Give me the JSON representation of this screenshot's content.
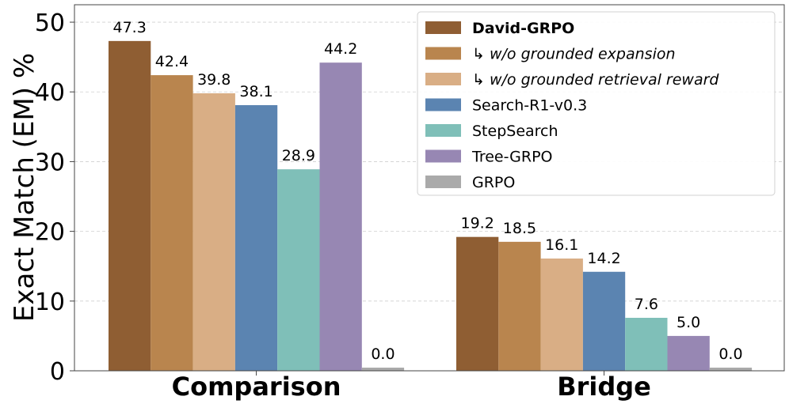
{
  "chart_data": {
    "type": "bar",
    "ylabel": "Exact Match (EM) %",
    "ylim": [
      0,
      52.5
    ],
    "yticks": [
      0,
      10,
      20,
      30,
      40,
      50
    ],
    "grid": true,
    "legend_position": "top-right",
    "categories": [
      "Comparison",
      "Bridge"
    ],
    "series": [
      {
        "name": "David-GRPO",
        "color": "#8f5e33",
        "values": [
          47.3,
          19.2
        ],
        "labels": [
          "47.3",
          "19.2"
        ],
        "bold": true,
        "italic": false
      },
      {
        "name": "↳ w/o grounded expansion",
        "color": "#b9854e",
        "values": [
          42.4,
          18.5
        ],
        "labels": [
          "42.4",
          "18.5"
        ],
        "bold": false,
        "italic": true
      },
      {
        "name": "↳ w/o grounded retrieval reward",
        "color": "#d9ae85",
        "values": [
          39.8,
          16.1
        ],
        "labels": [
          "39.8",
          "16.1"
        ],
        "bold": false,
        "italic": true
      },
      {
        "name": "Search-R1-v0.3",
        "color": "#5b84b1",
        "values": [
          38.1,
          14.2
        ],
        "labels": [
          "38.1",
          "14.2"
        ],
        "bold": false,
        "italic": false
      },
      {
        "name": "StepSearch",
        "color": "#7fbfb8",
        "values": [
          28.9,
          7.6
        ],
        "labels": [
          "28.9",
          "7.6"
        ],
        "bold": false,
        "italic": false
      },
      {
        "name": "Tree-GRPO",
        "color": "#9787b3",
        "values": [
          44.2,
          5.0
        ],
        "labels": [
          "44.2",
          "5.0"
        ],
        "bold": false,
        "italic": false
      },
      {
        "name": "GRPO",
        "color": "#aaaaaa",
        "values": [
          0.0,
          0.0
        ],
        "labels": [
          "0.0",
          "0.0"
        ],
        "bold": false,
        "italic": false
      }
    ]
  }
}
